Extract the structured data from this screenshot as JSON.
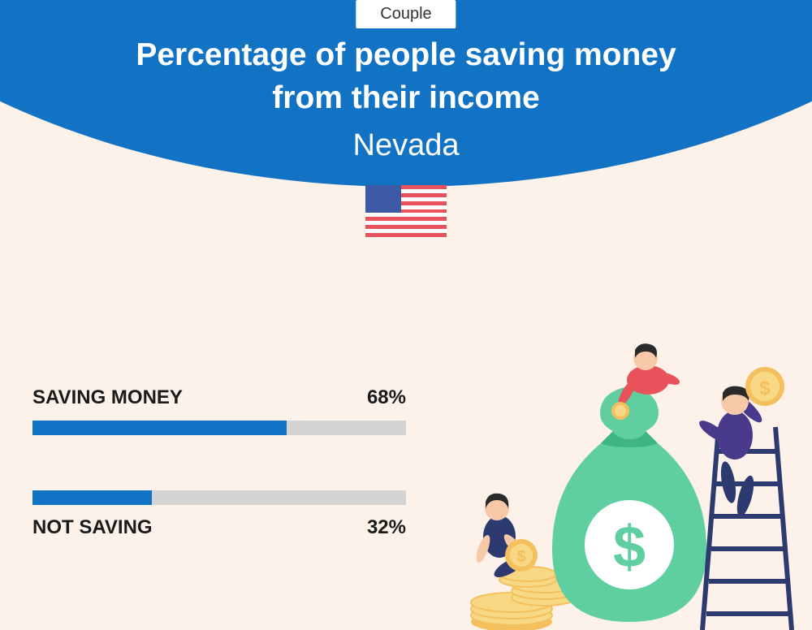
{
  "header": {
    "badge": "Couple",
    "title_line1": "Percentage of people saving money",
    "title_line2": "from their income",
    "subtitle": "Nevada",
    "curve_color": "#1273c4"
  },
  "flag": {
    "stripe_red": "#e8535b",
    "stripe_white": "#ffffff",
    "canton_color": "#3c5aa6"
  },
  "bars": {
    "track_color": "#d4d4d4",
    "fill_color": "#1273c4",
    "label_color": "#1a1a1a",
    "label_fontsize": 24,
    "items": [
      {
        "label": "SAVING MONEY",
        "value": 68,
        "display": "68%",
        "label_position": "above"
      },
      {
        "label": "NOT SAVING",
        "value": 32,
        "display": "32%",
        "label_position": "below"
      }
    ]
  },
  "illustration": {
    "moneybag_color": "#5fcea0",
    "moneybag_dark": "#3fb586",
    "coin_outer": "#f4c05e",
    "coin_inner": "#f9d885",
    "ladder_color": "#2d3a70",
    "person1_hair": "#2a2a2a",
    "person1_shirt": "#e8535b",
    "person2_hair": "#2a2a2a",
    "person2_shirt": "#4a3a8c",
    "person3_hair": "#2a2a2a",
    "person3_shirt": "#2d3a70",
    "skin": "#f8c9a8"
  },
  "background_color": "#fcf2e9"
}
